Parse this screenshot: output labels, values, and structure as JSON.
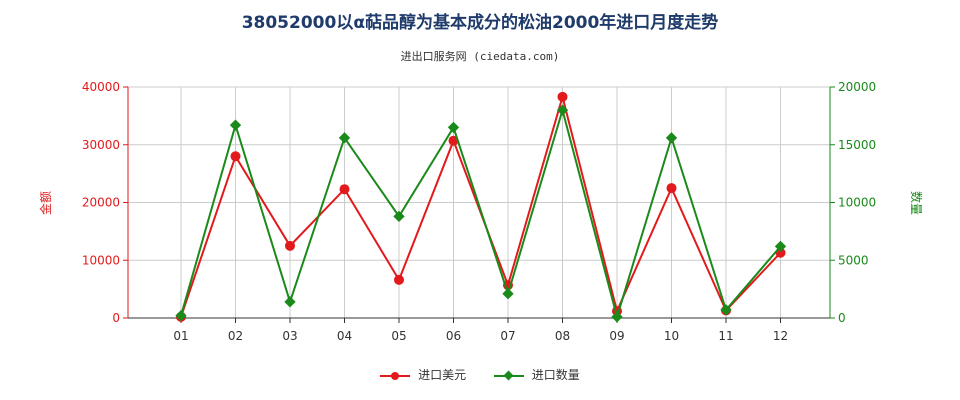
{
  "title": "38052000以α萜品醇为基本成分的松油2000年进口月度走势",
  "subtitle": "进出口服务网 (ciedata.com)",
  "colors": {
    "amount": "#e31a1c",
    "quantity": "#1a8a1a",
    "grid": "#cccccc"
  },
  "chart_data": {
    "type": "line",
    "categories": [
      "01",
      "02",
      "03",
      "04",
      "05",
      "06",
      "07",
      "08",
      "09",
      "10",
      "11",
      "12"
    ],
    "y_left": {
      "label": "金额",
      "ylim": [
        0,
        40000
      ],
      "ticks": [
        0,
        10000,
        20000,
        30000,
        40000
      ]
    },
    "y_right": {
      "label": "数量",
      "ylim": [
        0,
        20000
      ],
      "ticks": [
        0,
        5000,
        10000,
        15000,
        20000
      ]
    },
    "series": [
      {
        "name": "进口美元",
        "axis": "left",
        "marker": "circle",
        "values": [
          200,
          28000,
          12500,
          22300,
          6600,
          30700,
          5700,
          38300,
          1200,
          22500,
          1300,
          11300
        ]
      },
      {
        "name": "进口数量",
        "axis": "right",
        "marker": "diamond",
        "values": [
          200,
          16700,
          1400,
          15600,
          8800,
          16500,
          2100,
          18000,
          100,
          15600,
          700,
          6200
        ]
      }
    ],
    "grid": true,
    "legend": "bottom-center"
  }
}
